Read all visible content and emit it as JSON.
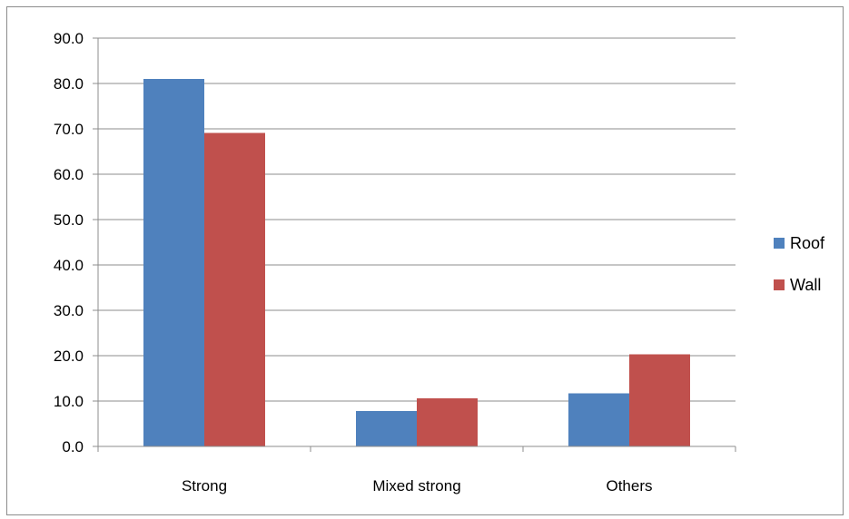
{
  "chart_data": {
    "type": "bar",
    "categories": [
      "Strong",
      "Mixed strong",
      "Others"
    ],
    "series": [
      {
        "name": "Roof",
        "color": "#4F81BD",
        "values": [
          81.0,
          7.8,
          11.7
        ]
      },
      {
        "name": "Wall",
        "color": "#C0504D",
        "values": [
          69.1,
          10.6,
          20.3
        ]
      }
    ],
    "ylim": [
      0,
      90
    ],
    "yticks": [
      "0.0",
      "10.0",
      "20.0",
      "30.0",
      "40.0",
      "50.0",
      "60.0",
      "70.0",
      "80.0",
      "90.0"
    ],
    "grid": true,
    "legend_position": "right"
  }
}
